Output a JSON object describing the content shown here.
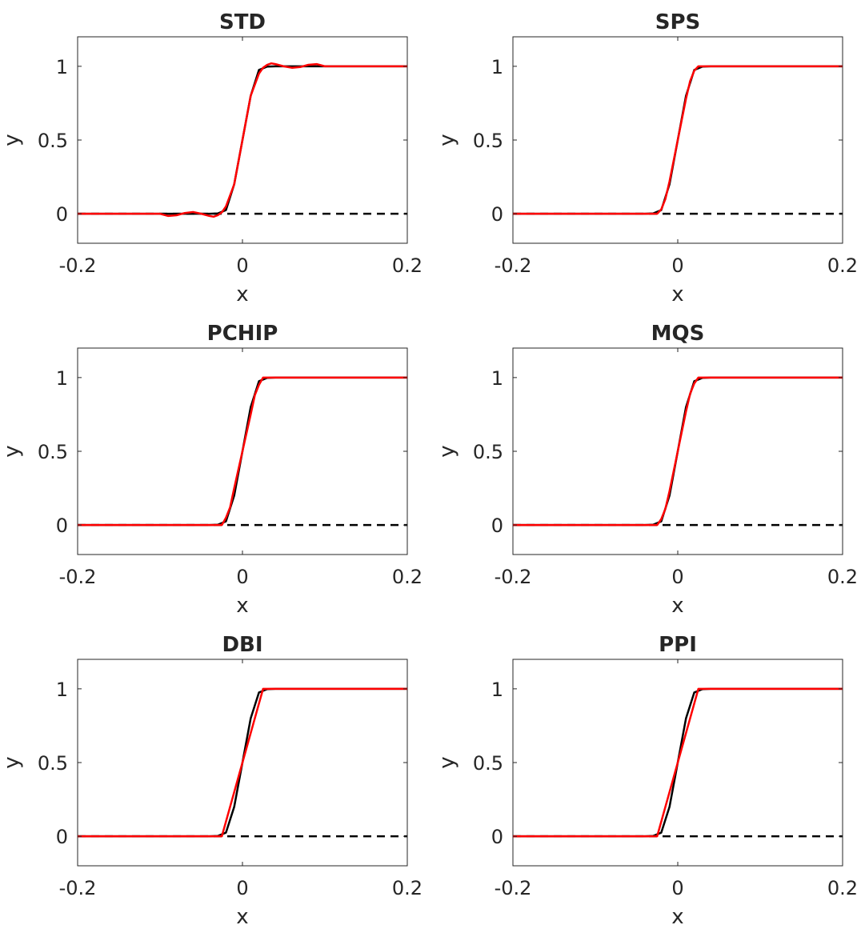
{
  "colors": {
    "exact": "#000000",
    "interpolant": "#ff0000",
    "baseline": "#000000",
    "axes": "#262626",
    "background": "#ffffff"
  },
  "chart_data": [
    {
      "type": "line",
      "title": "STD",
      "xlabel": "x",
      "ylabel": "y",
      "xlim": [
        -0.2,
        0.2
      ],
      "ylim": [
        -0.2,
        1.2
      ],
      "xticks": [
        "-0.2",
        "0",
        "0.2"
      ],
      "yticks": [
        "0",
        "0.5",
        "1"
      ],
      "grid": false,
      "series": [
        {
          "style": "solid-black",
          "x": [
            -0.2,
            -0.1,
            -0.04,
            -0.03,
            -0.02,
            -0.01,
            0,
            0.01,
            0.02,
            0.03,
            0.04,
            0.1,
            0.2
          ],
          "y": [
            0,
            0,
            0,
            0.002,
            0.025,
            0.2,
            0.5,
            0.8,
            0.975,
            0.998,
            1,
            1,
            1
          ]
        },
        {
          "style": "solid-red",
          "x": [
            -0.2,
            -0.1,
            -0.09,
            -0.08,
            -0.07,
            -0.06,
            -0.05,
            -0.04,
            -0.035,
            -0.03,
            -0.025,
            -0.02,
            -0.01,
            0,
            0.01,
            0.02,
            0.025,
            0.03,
            0.035,
            0.04,
            0.05,
            0.06,
            0.07,
            0.08,
            0.09,
            0.1,
            0.2
          ],
          "y": [
            0,
            0,
            -0.015,
            -0.01,
            0.005,
            0.012,
            0,
            -0.015,
            -0.02,
            -0.01,
            0.01,
            0.05,
            0.2,
            0.5,
            0.8,
            0.95,
            0.99,
            1.01,
            1.02,
            1.015,
            1.0,
            0.99,
            0.995,
            1.01,
            1.015,
            1.0,
            1.0
          ]
        },
        {
          "style": "dashed-black",
          "x": [
            -0.2,
            0.2
          ],
          "y": [
            0,
            0
          ]
        }
      ]
    },
    {
      "type": "line",
      "title": "SPS",
      "xlabel": "x",
      "ylabel": "y",
      "xlim": [
        -0.2,
        0.2
      ],
      "ylim": [
        -0.2,
        1.2
      ],
      "xticks": [
        "-0.2",
        "0",
        "0.2"
      ],
      "yticks": [
        "0",
        "0.5",
        "1"
      ],
      "grid": false,
      "series": [
        {
          "style": "solid-black",
          "x": [
            -0.2,
            -0.04,
            -0.03,
            -0.02,
            -0.01,
            0,
            0.01,
            0.02,
            0.03,
            0.04,
            0.2
          ],
          "y": [
            0,
            0,
            0.002,
            0.025,
            0.2,
            0.5,
            0.8,
            0.975,
            0.998,
            1,
            1
          ]
        },
        {
          "style": "solid-red",
          "x": [
            -0.2,
            -0.025,
            -0.02,
            -0.015,
            -0.01,
            0,
            0.01,
            0.015,
            0.02,
            0.025,
            0.2
          ],
          "y": [
            0,
            0,
            0.03,
            0.1,
            0.22,
            0.5,
            0.78,
            0.9,
            0.97,
            1,
            1
          ]
        },
        {
          "style": "dashed-black",
          "x": [
            -0.2,
            0.2
          ],
          "y": [
            0,
            0
          ]
        }
      ]
    },
    {
      "type": "line",
      "title": "PCHIP",
      "xlabel": "x",
      "ylabel": "y",
      "xlim": [
        -0.2,
        0.2
      ],
      "ylim": [
        -0.2,
        1.2
      ],
      "xticks": [
        "-0.2",
        "0",
        "0.2"
      ],
      "yticks": [
        "0",
        "0.5",
        "1"
      ],
      "grid": false,
      "series": [
        {
          "style": "solid-black",
          "x": [
            -0.2,
            -0.04,
            -0.03,
            -0.02,
            -0.01,
            0,
            0.01,
            0.02,
            0.03,
            0.04,
            0.2
          ],
          "y": [
            0,
            0,
            0.002,
            0.025,
            0.2,
            0.5,
            0.8,
            0.975,
            0.998,
            1,
            1
          ]
        },
        {
          "style": "solid-red",
          "x": [
            -0.2,
            -0.025,
            -0.02,
            -0.015,
            -0.01,
            0,
            0.01,
            0.015,
            0.02,
            0.025,
            0.2
          ],
          "y": [
            0,
            0,
            0.05,
            0.12,
            0.25,
            0.5,
            0.75,
            0.88,
            0.95,
            1,
            1
          ]
        },
        {
          "style": "dashed-black",
          "x": [
            -0.2,
            0.2
          ],
          "y": [
            0,
            0
          ]
        }
      ]
    },
    {
      "type": "line",
      "title": "MQS",
      "xlabel": "x",
      "ylabel": "y",
      "xlim": [
        -0.2,
        0.2
      ],
      "ylim": [
        -0.2,
        1.2
      ],
      "xticks": [
        "-0.2",
        "0",
        "0.2"
      ],
      "yticks": [
        "0",
        "0.5",
        "1"
      ],
      "grid": false,
      "series": [
        {
          "style": "solid-black",
          "x": [
            -0.2,
            -0.04,
            -0.03,
            -0.02,
            -0.01,
            0,
            0.01,
            0.02,
            0.03,
            0.04,
            0.2
          ],
          "y": [
            0,
            0,
            0.002,
            0.025,
            0.2,
            0.5,
            0.8,
            0.975,
            0.998,
            1,
            1
          ]
        },
        {
          "style": "solid-red",
          "x": [
            -0.2,
            -0.025,
            -0.02,
            -0.015,
            -0.01,
            0,
            0.01,
            0.015,
            0.02,
            0.025,
            0.2
          ],
          "y": [
            0,
            0,
            0.04,
            0.11,
            0.23,
            0.5,
            0.77,
            0.89,
            0.96,
            1,
            1
          ]
        },
        {
          "style": "dashed-black",
          "x": [
            -0.2,
            0.2
          ],
          "y": [
            0,
            0
          ]
        }
      ]
    },
    {
      "type": "line",
      "title": "DBI",
      "xlabel": "x",
      "ylabel": "y",
      "xlim": [
        -0.2,
        0.2
      ],
      "ylim": [
        -0.2,
        1.2
      ],
      "xticks": [
        "-0.2",
        "0",
        "0.2"
      ],
      "yticks": [
        "0",
        "0.5",
        "1"
      ],
      "grid": false,
      "series": [
        {
          "style": "solid-black",
          "x": [
            -0.2,
            -0.04,
            -0.03,
            -0.02,
            -0.01,
            0,
            0.01,
            0.02,
            0.03,
            0.04,
            0.2
          ],
          "y": [
            0,
            0,
            0.002,
            0.025,
            0.2,
            0.5,
            0.8,
            0.975,
            0.998,
            1,
            1
          ]
        },
        {
          "style": "solid-red",
          "x": [
            -0.2,
            -0.025,
            0.025,
            0.2
          ],
          "y": [
            0,
            0,
            1,
            1
          ]
        },
        {
          "style": "dashed-black",
          "x": [
            -0.2,
            0.2
          ],
          "y": [
            0,
            0
          ]
        }
      ]
    },
    {
      "type": "line",
      "title": "PPI",
      "xlabel": "x",
      "ylabel": "y",
      "xlim": [
        -0.2,
        0.2
      ],
      "ylim": [
        -0.2,
        1.2
      ],
      "xticks": [
        "-0.2",
        "0",
        "0.2"
      ],
      "yticks": [
        "0",
        "0.5",
        "1"
      ],
      "grid": false,
      "series": [
        {
          "style": "solid-black",
          "x": [
            -0.2,
            -0.04,
            -0.03,
            -0.02,
            -0.01,
            0,
            0.01,
            0.02,
            0.03,
            0.04,
            0.2
          ],
          "y": [
            0,
            0,
            0.002,
            0.025,
            0.2,
            0.5,
            0.8,
            0.975,
            0.998,
            1,
            1
          ]
        },
        {
          "style": "solid-red",
          "x": [
            -0.2,
            -0.025,
            0.025,
            0.2
          ],
          "y": [
            0,
            0,
            1,
            1
          ]
        },
        {
          "style": "dashed-black",
          "x": [
            -0.2,
            0.2
          ],
          "y": [
            0,
            0
          ]
        }
      ]
    }
  ]
}
